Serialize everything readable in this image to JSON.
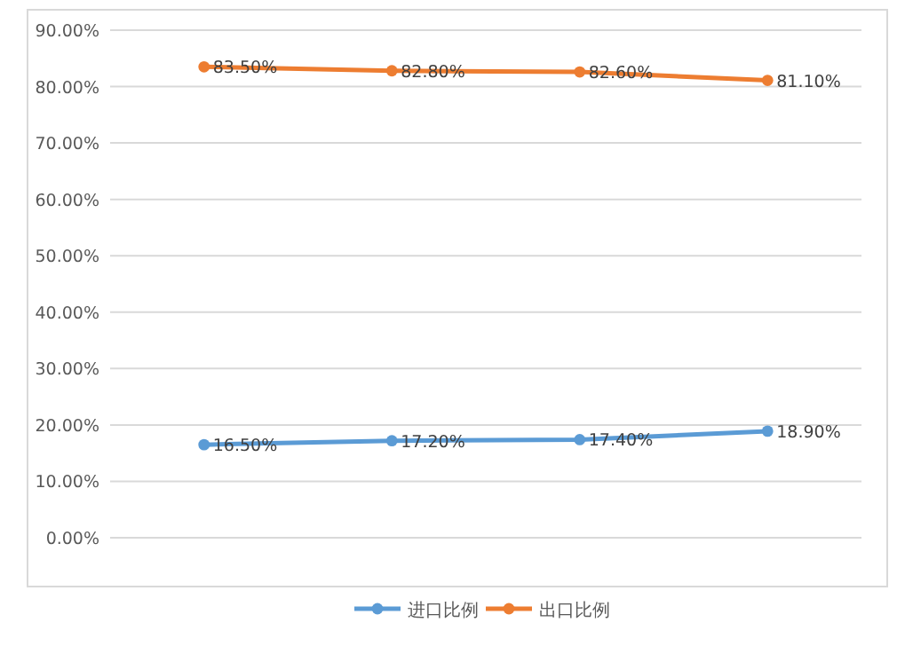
{
  "chart_data": {
    "type": "line",
    "categories": [
      null,
      null,
      null,
      null
    ],
    "series": [
      {
        "name": "进口比例",
        "color": "#5b9bd5",
        "values": [
          16.5,
          17.2,
          17.4,
          18.9
        ],
        "value_labels": [
          "16.50%",
          "17.20%",
          "17.40%",
          "18.90%"
        ]
      },
      {
        "name": "出口比例",
        "color": "#ed7d31",
        "values": [
          83.5,
          82.8,
          82.6,
          81.1
        ],
        "value_labels": [
          "83.50%",
          "82.80%",
          "82.60%",
          "81.10%"
        ]
      }
    ],
    "ylim": [
      0,
      90
    ],
    "yticks": [
      {
        "value": 0,
        "label": "0.00%"
      },
      {
        "value": 10,
        "label": "10.00%"
      },
      {
        "value": 20,
        "label": "20.00%"
      },
      {
        "value": 30,
        "label": "30.00%"
      },
      {
        "value": 40,
        "label": "40.00%"
      },
      {
        "value": 50,
        "label": "50.00%"
      },
      {
        "value": 60,
        "label": "60.00%"
      },
      {
        "value": 70,
        "label": "70.00%"
      },
      {
        "value": 80,
        "label": "80.00%"
      },
      {
        "value": 90,
        "label": "90.00%"
      }
    ],
    "grid": "y",
    "legend": "bottom",
    "marker": "circle"
  }
}
